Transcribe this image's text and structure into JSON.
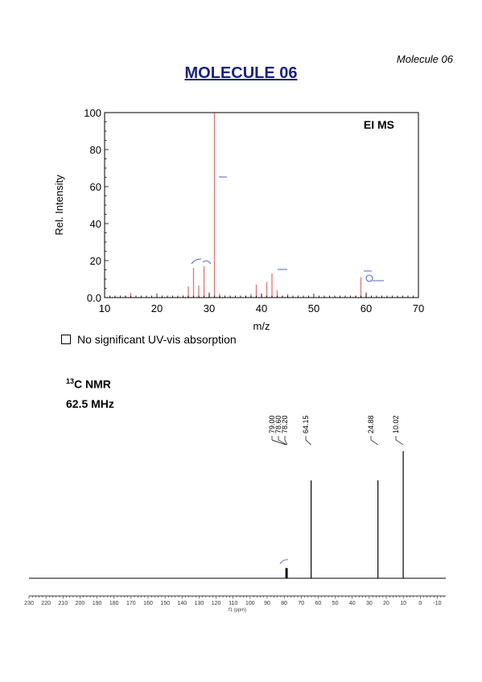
{
  "page": {
    "corner_label": "Molecule 06",
    "title": "MOLECULE 06",
    "uv_note": "No significant UV-vis absorption",
    "nmr_nucleus_mass": "13",
    "nmr_nucleus": "C NMR",
    "nmr_freq": "62.5 MHz"
  },
  "chart_data": [
    {
      "type": "bar",
      "title": "EI MS",
      "xlabel": "m/z",
      "ylabel": "Rel. Intensity",
      "xlim": [
        10,
        70
      ],
      "ylim": [
        0,
        100
      ],
      "xticks": [
        10,
        20,
        30,
        40,
        50,
        60,
        70
      ],
      "yticks": [
        "0.0",
        "20",
        "40",
        "60",
        "80",
        "100"
      ],
      "bar_color": "#e57373",
      "points": [
        {
          "x": 14,
          "y": 1
        },
        {
          "x": 15,
          "y": 2.5
        },
        {
          "x": 26,
          "y": 6
        },
        {
          "x": 27,
          "y": 16
        },
        {
          "x": 28,
          "y": 6.5
        },
        {
          "x": 29,
          "y": 17
        },
        {
          "x": 30,
          "y": 3
        },
        {
          "x": 31,
          "y": 100
        },
        {
          "x": 32,
          "y": 2
        },
        {
          "x": 37,
          "y": 1
        },
        {
          "x": 38,
          "y": 2
        },
        {
          "x": 39,
          "y": 7
        },
        {
          "x": 40,
          "y": 2
        },
        {
          "x": 41,
          "y": 8.5
        },
        {
          "x": 42,
          "y": 13
        },
        {
          "x": 43,
          "y": 4
        },
        {
          "x": 44,
          "y": 1
        },
        {
          "x": 45,
          "y": 2
        },
        {
          "x": 58,
          "y": 1
        },
        {
          "x": 59,
          "y": 11
        },
        {
          "x": 60,
          "y": 3
        }
      ]
    },
    {
      "type": "line",
      "xlabel": "f1 (ppm)",
      "xlim": [
        230,
        -15
      ],
      "xticks": [
        230,
        220,
        210,
        200,
        190,
        180,
        170,
        160,
        150,
        140,
        130,
        120,
        110,
        100,
        90,
        80,
        70,
        60,
        50,
        40,
        30,
        20,
        10,
        0,
        -10
      ],
      "peak_labels": [
        "79.00",
        "78.60",
        "78.20",
        "64.15",
        "24.88",
        "10.02"
      ],
      "peaks": [
        {
          "ppm": 79.0,
          "height": 0.08
        },
        {
          "ppm": 78.6,
          "height": 0.08
        },
        {
          "ppm": 78.2,
          "height": 0.08
        },
        {
          "ppm": 64.15,
          "height": 0.77
        },
        {
          "ppm": 24.88,
          "height": 0.77
        },
        {
          "ppm": 10.02,
          "height": 1.0
        }
      ]
    }
  ]
}
